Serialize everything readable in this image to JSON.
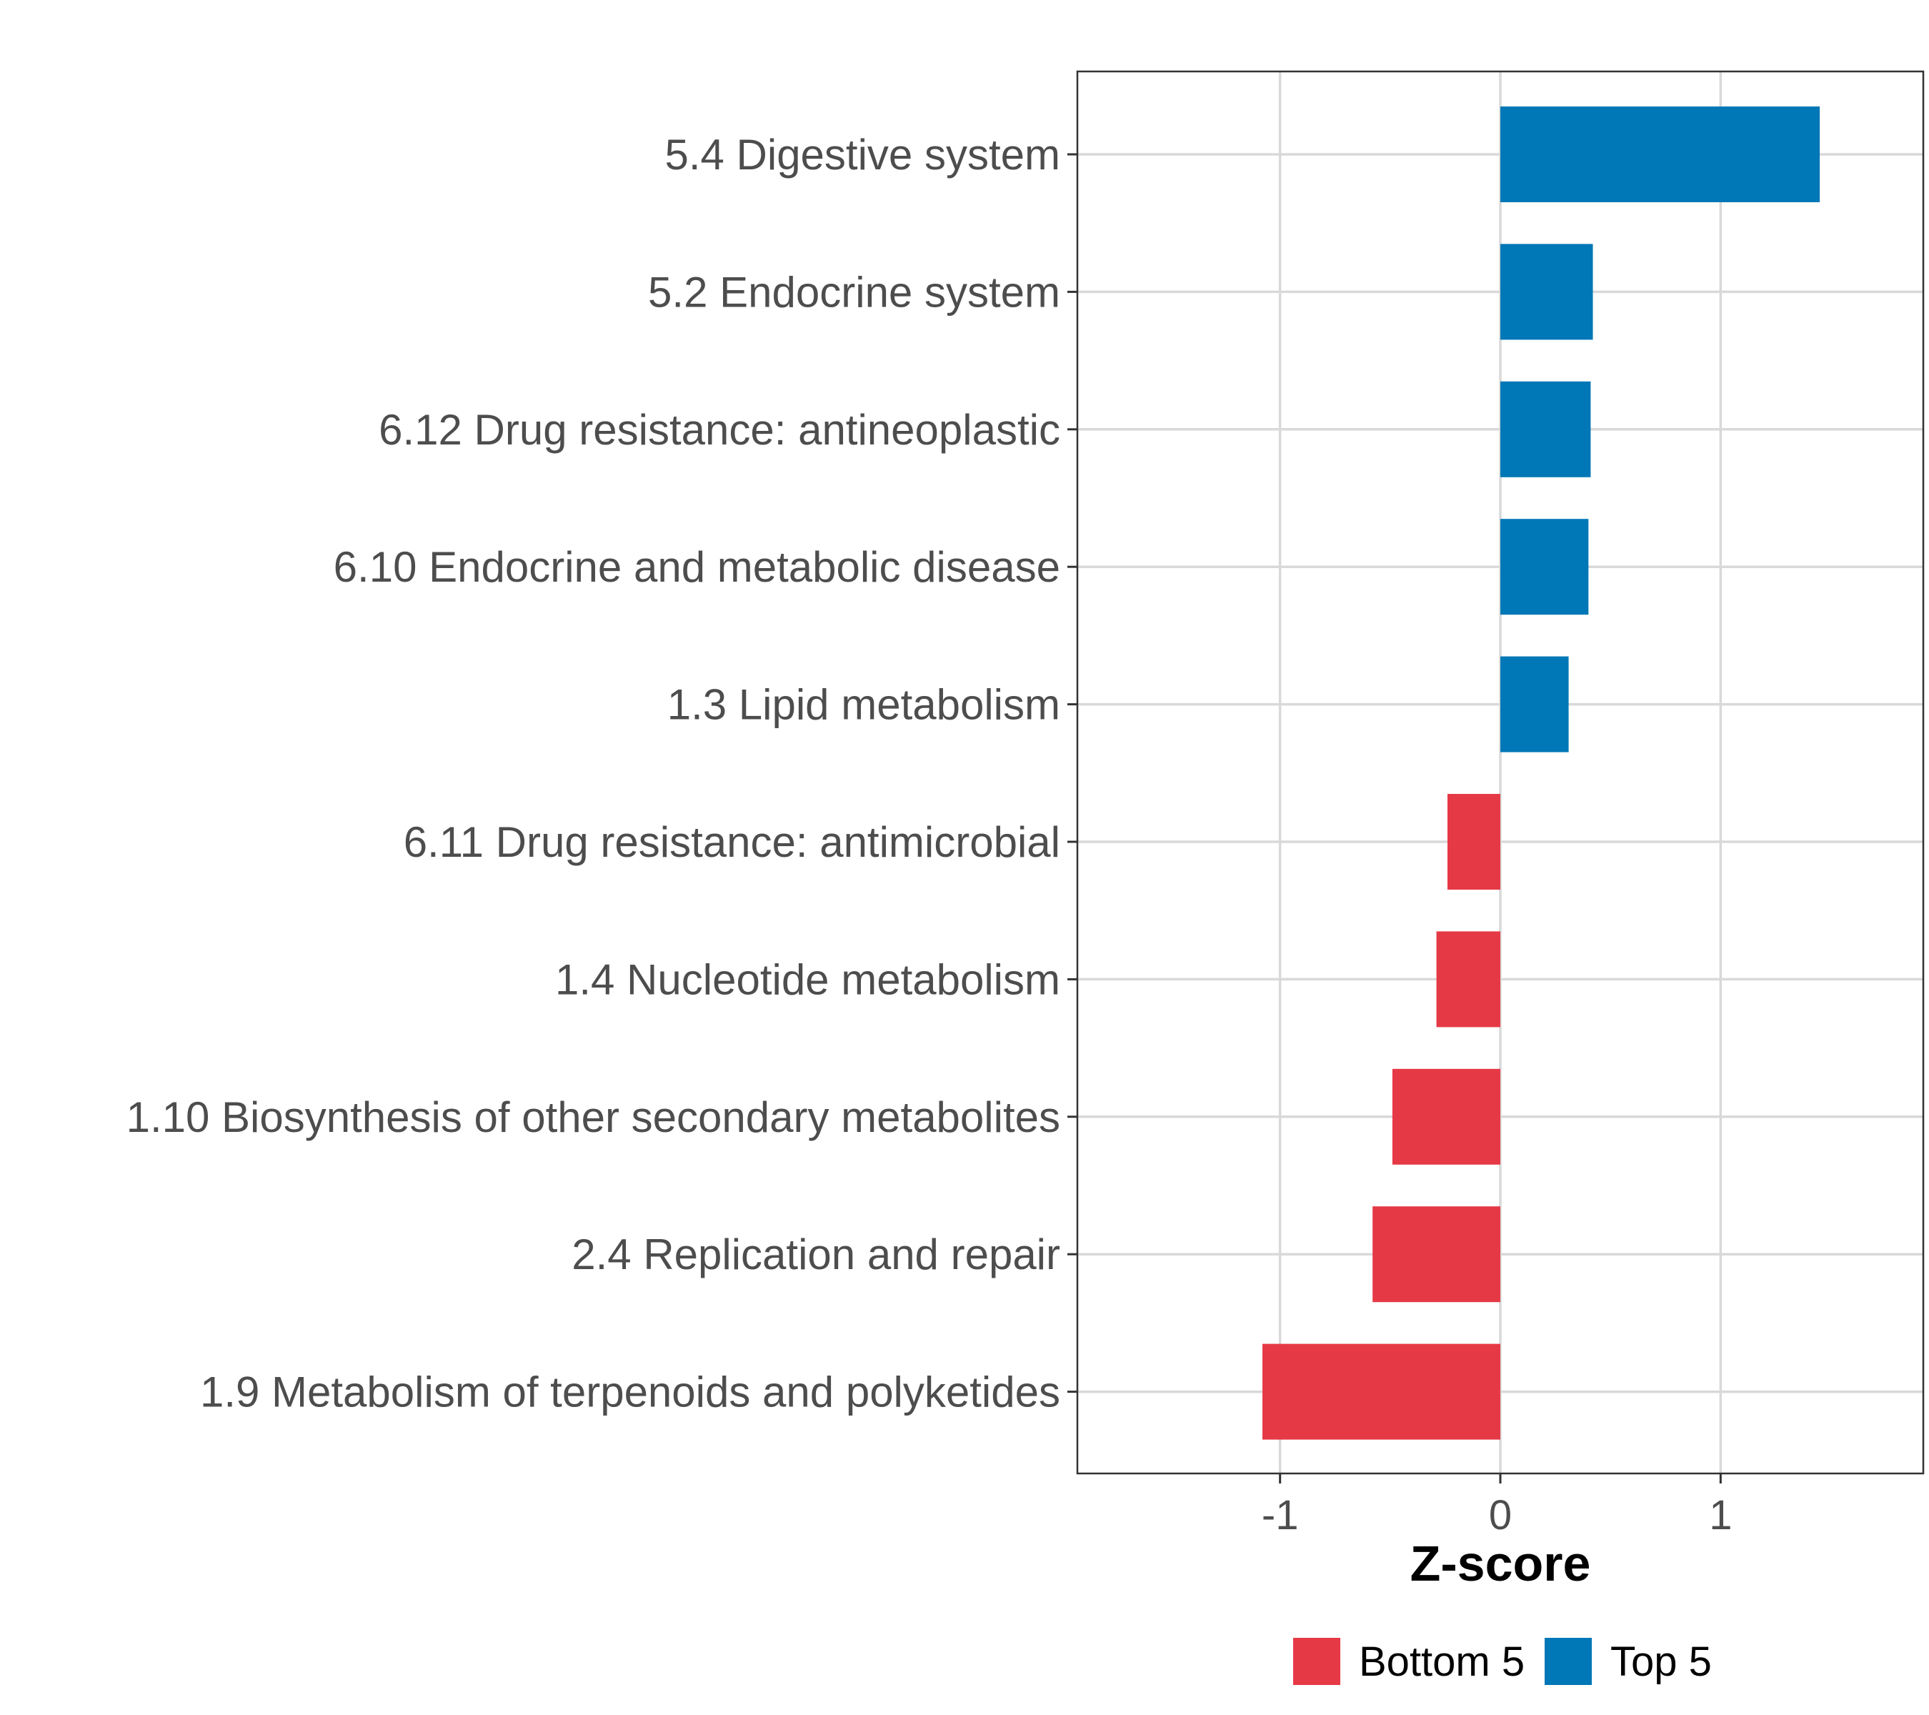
{
  "chart_data": {
    "type": "bar",
    "orientation": "horizontal",
    "title": "",
    "xlabel": "Z-score",
    "ylabel": "",
    "xlim": [
      -1.92,
      1.92
    ],
    "xticks": [
      -1,
      0,
      1
    ],
    "xtick_labels": [
      "-1",
      "0",
      "1"
    ],
    "grid": true,
    "legend_position": "bottom",
    "categories": [
      "5.4 Digestive system",
      "5.2 Endocrine system",
      "6.12 Drug resistance: antineoplastic",
      "6.10 Endocrine and metabolic disease",
      "1.3 Lipid metabolism",
      "6.11 Drug resistance: antimicrobial",
      "1.4 Nucleotide metabolism",
      "1.10 Biosynthesis of other secondary metabolites",
      "2.4 Replication and repair",
      "1.9 Metabolism of terpenoids and polyketides"
    ],
    "values": [
      1.45,
      0.42,
      0.41,
      0.4,
      0.31,
      -0.24,
      -0.29,
      -0.49,
      -0.58,
      -1.08
    ],
    "groups": [
      "Top 5",
      "Top 5",
      "Top 5",
      "Top 5",
      "Top 5",
      "Bottom 5",
      "Bottom 5",
      "Bottom 5",
      "Bottom 5",
      "Bottom 5"
    ],
    "legend": [
      {
        "name": "Bottom 5",
        "color": "#e63946"
      },
      {
        "name": "Top 5",
        "color": "#0077b6"
      }
    ]
  }
}
